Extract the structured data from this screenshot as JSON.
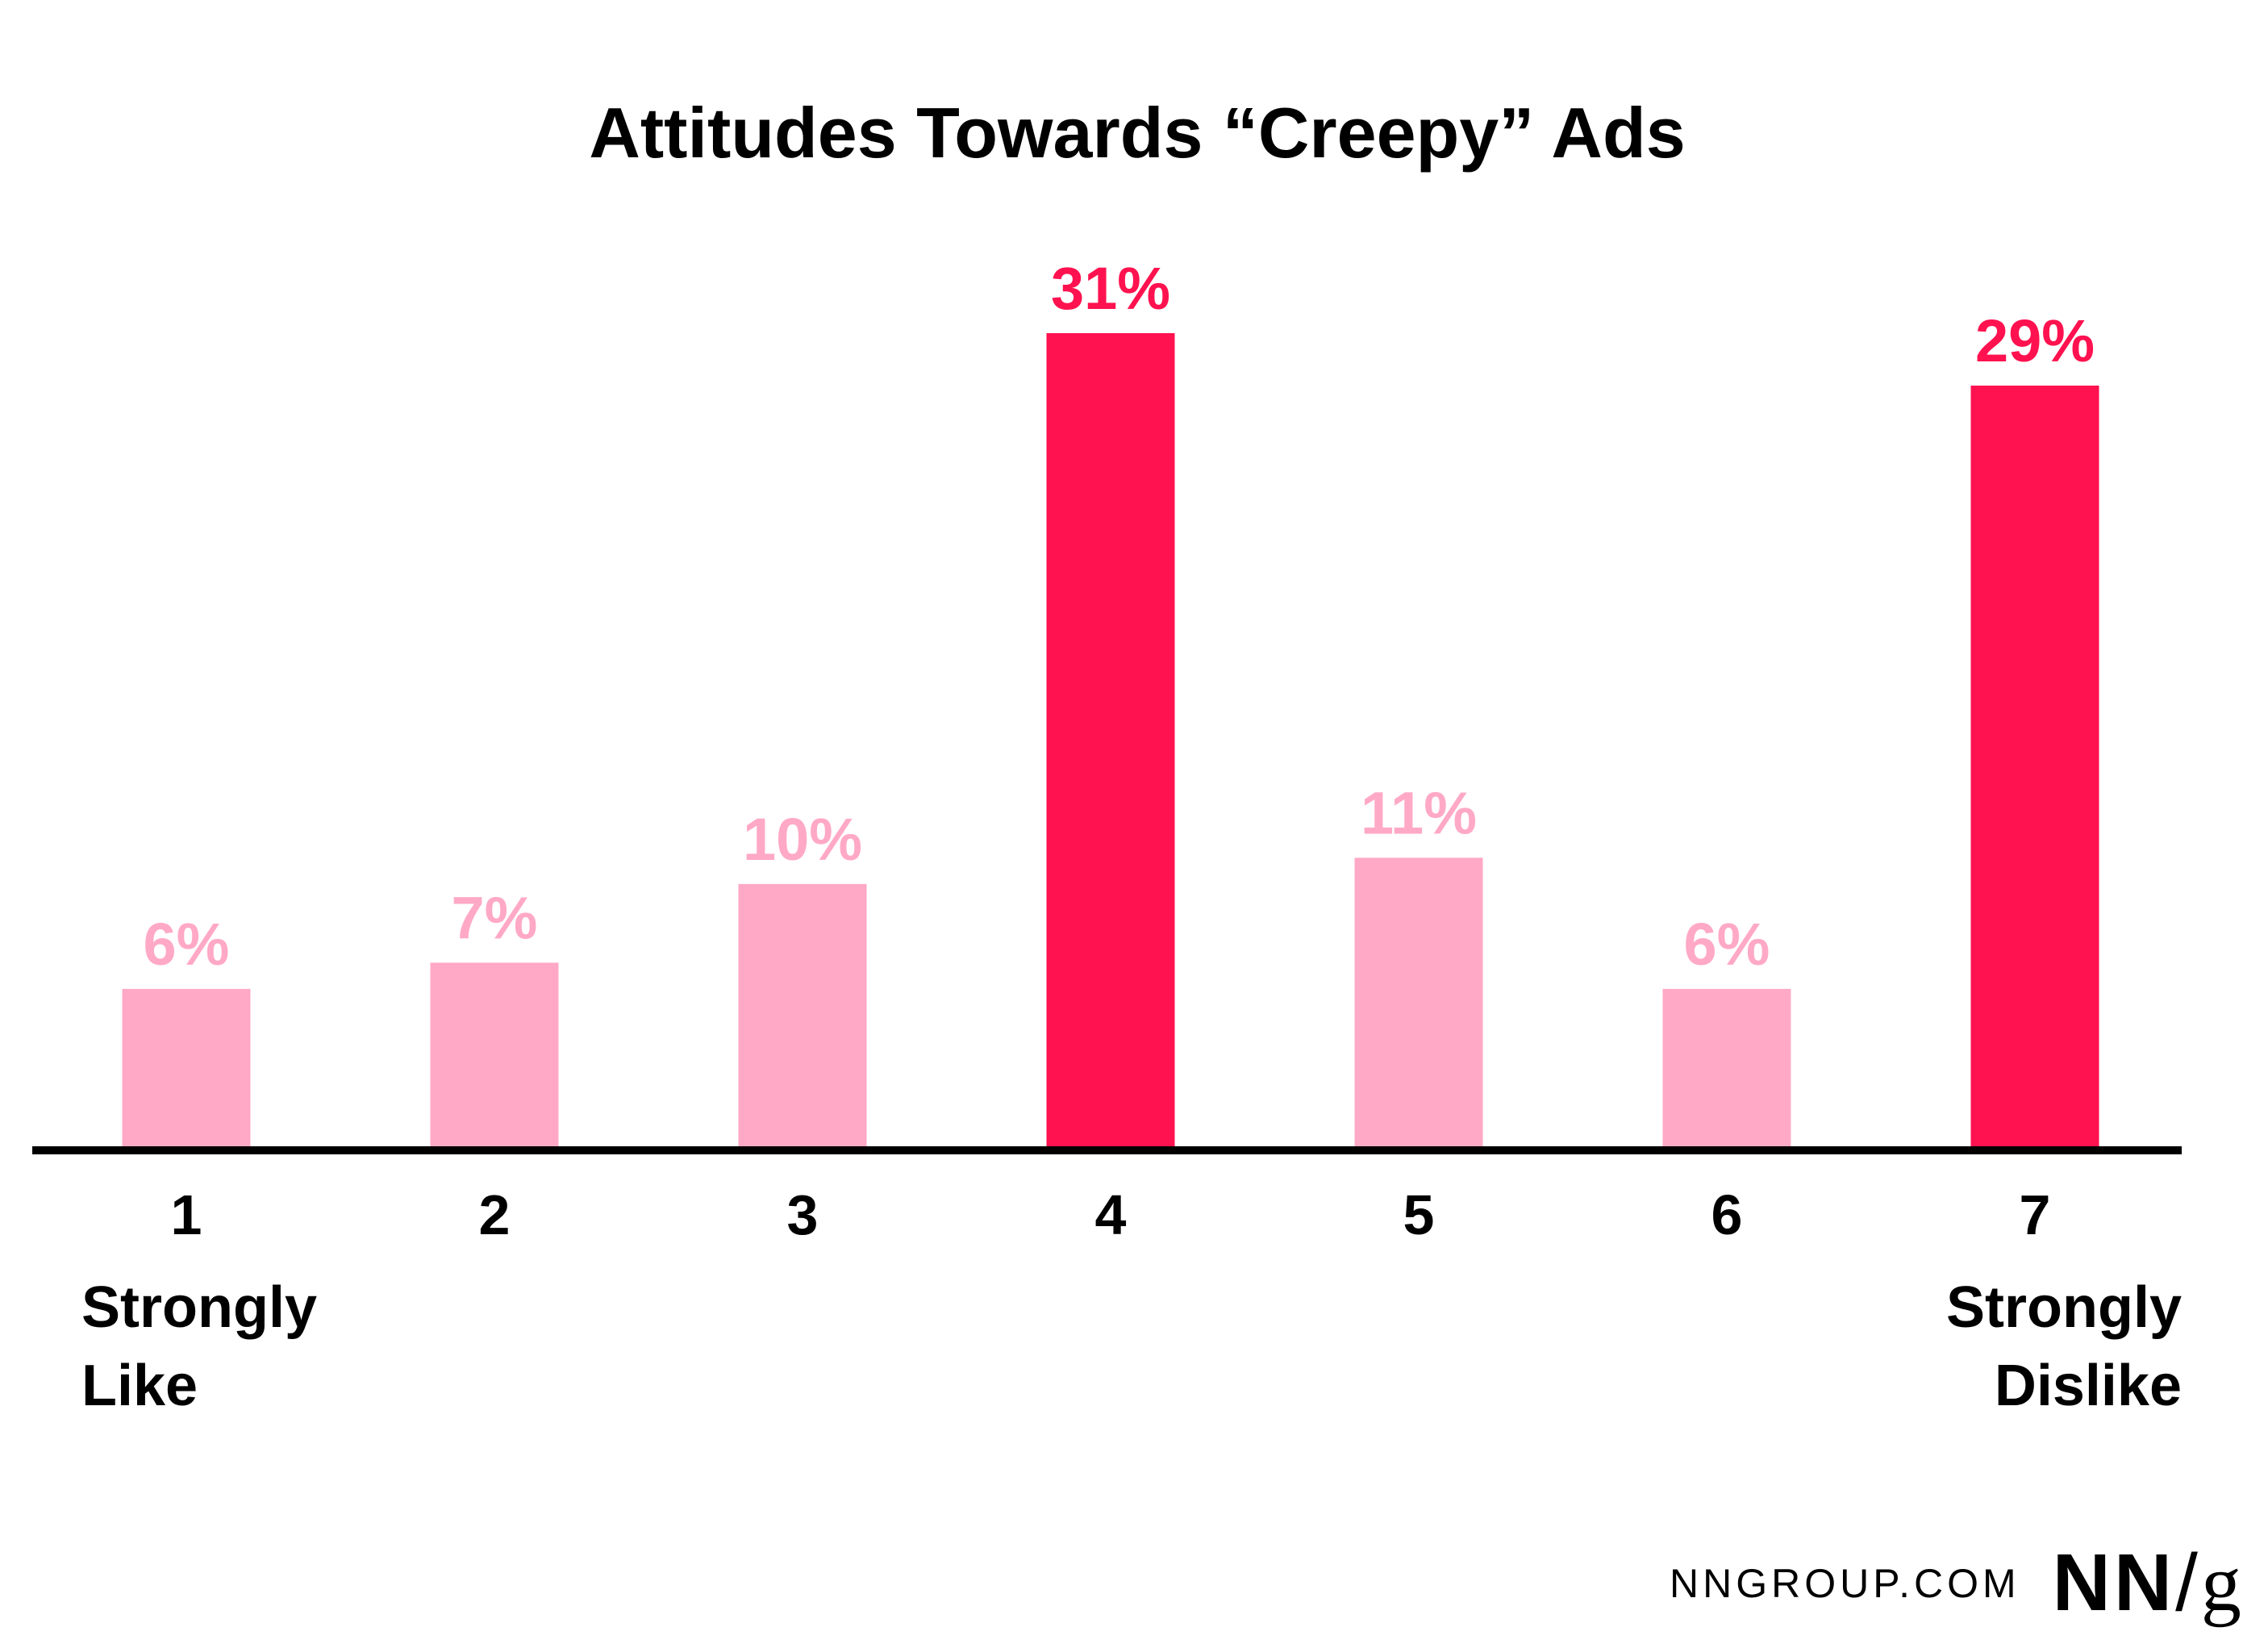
{
  "chart_data": {
    "type": "bar",
    "title": "Attitudes Towards “Creepy” Ads",
    "categories": [
      "1",
      "2",
      "3",
      "4",
      "5",
      "6",
      "7"
    ],
    "values": [
      6,
      7,
      10,
      31,
      11,
      6,
      29
    ],
    "value_labels": [
      "6%",
      "7%",
      "10%",
      "31%",
      "11%",
      "6%",
      "29%"
    ],
    "highlighted": [
      false,
      false,
      false,
      true,
      false,
      false,
      true
    ],
    "end_labels": {
      "left": [
        "Strongly",
        "Like"
      ],
      "right": [
        "Strongly",
        "Dislike"
      ]
    },
    "xlabel": "",
    "ylabel": "",
    "ylim": [
      0,
      31
    ],
    "grid": false,
    "colors": {
      "normal": "#FFA9C6",
      "highlight": "#FF124F",
      "axis": "#000000"
    }
  },
  "footer": {
    "site": "NNGROUP.COM",
    "logo": "NN/g"
  }
}
